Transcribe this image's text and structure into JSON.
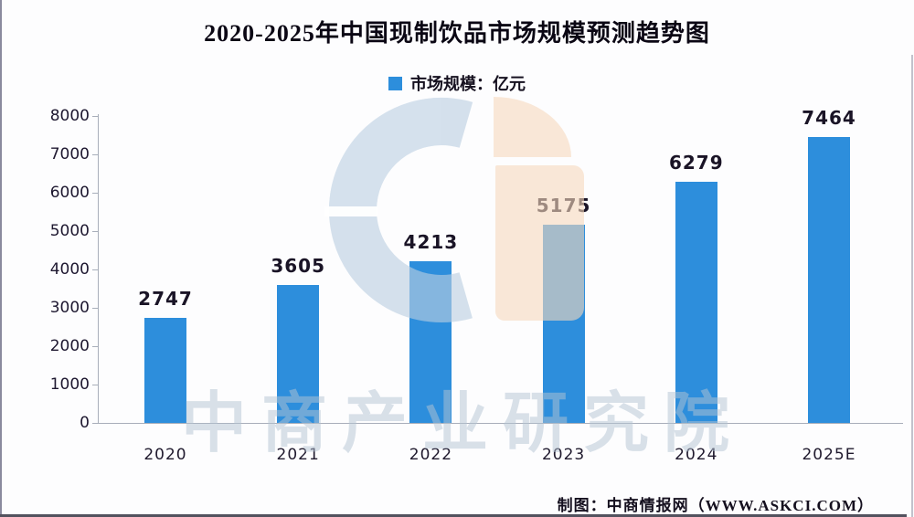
{
  "page": {
    "footer": "制图：中商情报网（WWW.ASKCI.COM）",
    "watermark_text": "中商产业研究院",
    "background_color": "#fdfdfe"
  },
  "legend": {
    "label": "市场规模：亿元",
    "swatch_color": "#2D8EDC"
  },
  "chart_data": {
    "type": "bar",
    "title": "2020-2025年中国现制饮品市场规模预测趋势图",
    "categories": [
      "2020",
      "2021",
      "2022",
      "2023",
      "2024",
      "2025E"
    ],
    "values": [
      2747,
      3605,
      4213,
      5175,
      6279,
      7464
    ],
    "series_name": "市场规模",
    "unit": "亿元",
    "xlabel": "",
    "ylabel": "",
    "ylim": [
      0,
      8000
    ],
    "yticks": [
      0,
      1000,
      2000,
      3000,
      4000,
      5000,
      6000,
      7000,
      8000
    ],
    "grid": false,
    "legend_position": "top-center",
    "bar_color": "#2D8EDC",
    "value_labels": "above-bars"
  },
  "colors": {
    "bar": "#2D8EDC",
    "axis": "#a8aeba",
    "watermark_blue": "#bccfe0",
    "watermark_peach": "#f6d8bd",
    "watermark_text": "#b4c4d4",
    "title_text": "#0b0714"
  }
}
